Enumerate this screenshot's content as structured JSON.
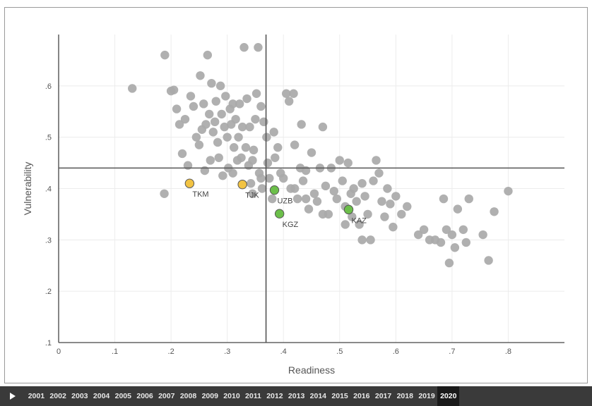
{
  "chart_data": {
    "type": "scatter",
    "xlabel": "Readiness",
    "ylabel": "Vulnerability",
    "xlim": [
      0,
      0.9
    ],
    "ylim": [
      0.1,
      0.7
    ],
    "x_ticks": [
      "0",
      ".1",
      ".2",
      ".3",
      ".4",
      ".5",
      ".6",
      ".7",
      ".8"
    ],
    "y_ticks": [
      ".1",
      ".2",
      ".3",
      ".4",
      ".5",
      ".6"
    ],
    "reference_lines": {
      "x": 0.369,
      "y": 0.44
    },
    "grid": true,
    "colors": {
      "background_points": "#a9a9a9",
      "highlight_orange": "#f2c343",
      "highlight_green": "#6cbf4a"
    },
    "highlighted": [
      {
        "label": "TKM",
        "x": 0.233,
        "y": 0.41,
        "color": "#f2c343"
      },
      {
        "label": "TJK",
        "x": 0.327,
        "y": 0.408,
        "color": "#f2c343"
      },
      {
        "label": "UZB",
        "x": 0.384,
        "y": 0.397,
        "color": "#6cbf4a"
      },
      {
        "label": "KGZ",
        "x": 0.393,
        "y": 0.351,
        "color": "#6cbf4a"
      },
      {
        "label": "KAZ",
        "x": 0.516,
        "y": 0.359,
        "color": "#6cbf4a"
      }
    ],
    "points": [
      [
        0.131,
        0.595
      ],
      [
        0.188,
        0.39
      ],
      [
        0.189,
        0.66
      ],
      [
        0.2,
        0.59
      ],
      [
        0.205,
        0.592
      ],
      [
        0.21,
        0.555
      ],
      [
        0.215,
        0.525
      ],
      [
        0.22,
        0.468
      ],
      [
        0.225,
        0.535
      ],
      [
        0.23,
        0.445
      ],
      [
        0.235,
        0.58
      ],
      [
        0.24,
        0.56
      ],
      [
        0.245,
        0.5
      ],
      [
        0.25,
        0.485
      ],
      [
        0.252,
        0.62
      ],
      [
        0.255,
        0.515
      ],
      [
        0.258,
        0.565
      ],
      [
        0.26,
        0.435
      ],
      [
        0.262,
        0.525
      ],
      [
        0.265,
        0.66
      ],
      [
        0.268,
        0.545
      ],
      [
        0.27,
        0.455
      ],
      [
        0.272,
        0.605
      ],
      [
        0.275,
        0.51
      ],
      [
        0.278,
        0.53
      ],
      [
        0.28,
        0.57
      ],
      [
        0.283,
        0.49
      ],
      [
        0.285,
        0.46
      ],
      [
        0.288,
        0.6
      ],
      [
        0.29,
        0.545
      ],
      [
        0.292,
        0.425
      ],
      [
        0.295,
        0.52
      ],
      [
        0.297,
        0.58
      ],
      [
        0.3,
        0.5
      ],
      [
        0.302,
        0.44
      ],
      [
        0.305,
        0.555
      ],
      [
        0.307,
        0.525
      ],
      [
        0.31,
        0.565
      ],
      [
        0.312,
        0.48
      ],
      [
        0.315,
        0.535
      ],
      [
        0.318,
        0.455
      ],
      [
        0.32,
        0.5
      ],
      [
        0.322,
        0.565
      ],
      [
        0.325,
        0.46
      ],
      [
        0.327,
        0.52
      ],
      [
        0.33,
        0.675
      ],
      [
        0.333,
        0.48
      ],
      [
        0.335,
        0.575
      ],
      [
        0.338,
        0.445
      ],
      [
        0.34,
        0.52
      ],
      [
        0.342,
        0.41
      ],
      [
        0.345,
        0.455
      ],
      [
        0.347,
        0.475
      ],
      [
        0.35,
        0.535
      ],
      [
        0.352,
        0.585
      ],
      [
        0.355,
        0.675
      ],
      [
        0.357,
        0.43
      ],
      [
        0.36,
        0.56
      ],
      [
        0.362,
        0.4
      ],
      [
        0.365,
        0.53
      ],
      [
        0.37,
        0.5
      ],
      [
        0.372,
        0.45
      ],
      [
        0.375,
        0.42
      ],
      [
        0.38,
        0.38
      ],
      [
        0.383,
        0.51
      ],
      [
        0.385,
        0.46
      ],
      [
        0.39,
        0.48
      ],
      [
        0.395,
        0.43
      ],
      [
        0.4,
        0.42
      ],
      [
        0.405,
        0.585
      ],
      [
        0.41,
        0.57
      ],
      [
        0.413,
        0.4
      ],
      [
        0.418,
        0.585
      ],
      [
        0.42,
        0.485
      ],
      [
        0.425,
        0.38
      ],
      [
        0.43,
        0.44
      ],
      [
        0.432,
        0.525
      ],
      [
        0.435,
        0.415
      ],
      [
        0.44,
        0.435
      ],
      [
        0.445,
        0.36
      ],
      [
        0.45,
        0.47
      ],
      [
        0.455,
        0.39
      ],
      [
        0.46,
        0.375
      ],
      [
        0.465,
        0.44
      ],
      [
        0.47,
        0.52
      ],
      [
        0.475,
        0.405
      ],
      [
        0.48,
        0.35
      ],
      [
        0.485,
        0.44
      ],
      [
        0.49,
        0.395
      ],
      [
        0.495,
        0.38
      ],
      [
        0.5,
        0.455
      ],
      [
        0.505,
        0.415
      ],
      [
        0.51,
        0.365
      ],
      [
        0.515,
        0.45
      ],
      [
        0.52,
        0.39
      ],
      [
        0.522,
        0.345
      ],
      [
        0.525,
        0.4
      ],
      [
        0.53,
        0.375
      ],
      [
        0.535,
        0.33
      ],
      [
        0.54,
        0.41
      ],
      [
        0.545,
        0.385
      ],
      [
        0.55,
        0.35
      ],
      [
        0.555,
        0.3
      ],
      [
        0.56,
        0.415
      ],
      [
        0.565,
        0.455
      ],
      [
        0.57,
        0.43
      ],
      [
        0.575,
        0.375
      ],
      [
        0.58,
        0.345
      ],
      [
        0.585,
        0.4
      ],
      [
        0.59,
        0.37
      ],
      [
        0.595,
        0.325
      ],
      [
        0.6,
        0.385
      ],
      [
        0.61,
        0.35
      ],
      [
        0.62,
        0.365
      ],
      [
        0.64,
        0.31
      ],
      [
        0.65,
        0.32
      ],
      [
        0.66,
        0.3
      ],
      [
        0.67,
        0.3
      ],
      [
        0.68,
        0.295
      ],
      [
        0.685,
        0.38
      ],
      [
        0.69,
        0.32
      ],
      [
        0.695,
        0.255
      ],
      [
        0.7,
        0.31
      ],
      [
        0.705,
        0.285
      ],
      [
        0.71,
        0.36
      ],
      [
        0.72,
        0.32
      ],
      [
        0.725,
        0.295
      ],
      [
        0.73,
        0.38
      ],
      [
        0.755,
        0.31
      ],
      [
        0.765,
        0.26
      ],
      [
        0.775,
        0.355
      ],
      [
        0.8,
        0.395
      ],
      [
        0.54,
        0.3
      ],
      [
        0.51,
        0.33
      ],
      [
        0.47,
        0.35
      ],
      [
        0.44,
        0.38
      ],
      [
        0.42,
        0.4
      ],
      [
        0.36,
        0.42
      ],
      [
        0.345,
        0.39
      ],
      [
        0.31,
        0.43
      ]
    ]
  },
  "timeline": {
    "years": [
      "2001",
      "2002",
      "2003",
      "2004",
      "2005",
      "2006",
      "2007",
      "2008",
      "2009",
      "2010",
      "2011",
      "2012",
      "2013",
      "2014",
      "2015",
      "2016",
      "2017",
      "2018",
      "2019",
      "2020"
    ],
    "active_year": "2020"
  }
}
